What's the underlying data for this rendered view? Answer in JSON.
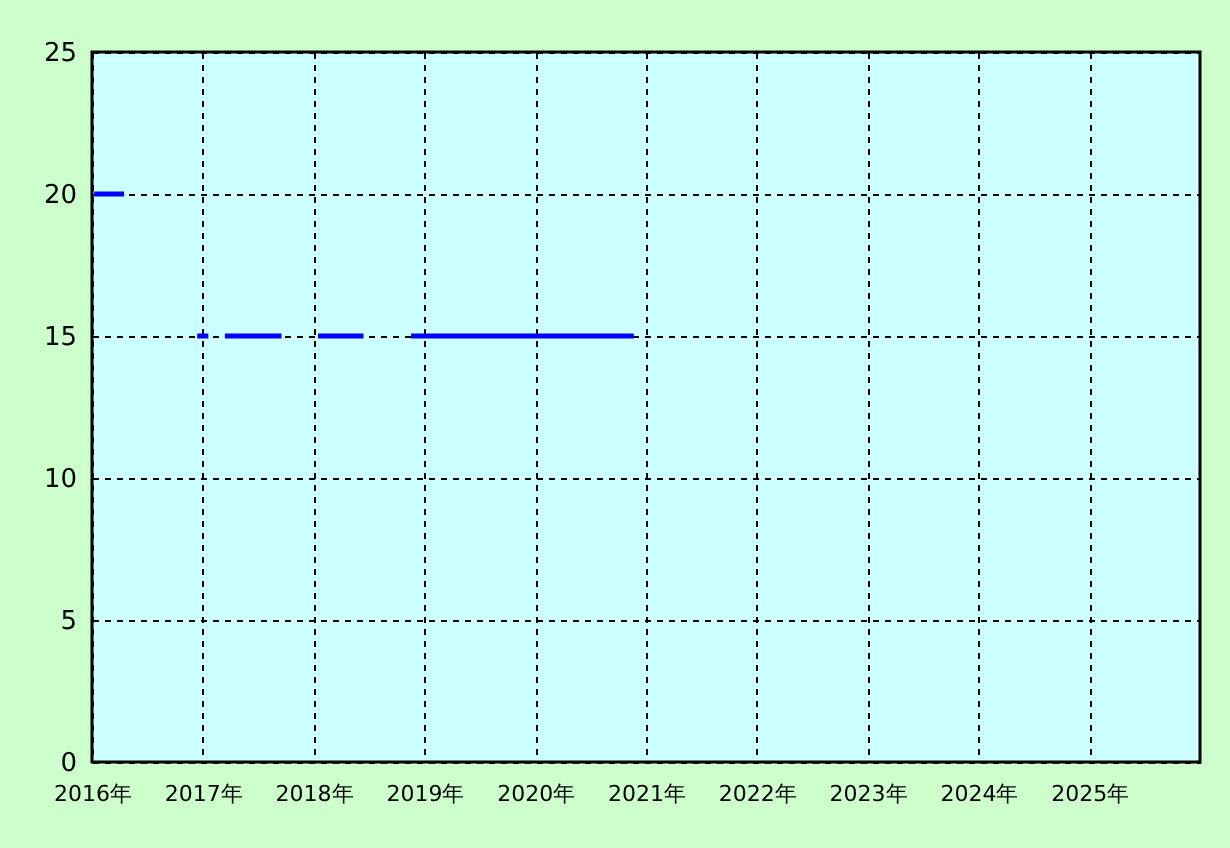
{
  "chart_data": {
    "type": "line",
    "x": [
      2016.02,
      2016.29,
      2016.6,
      2016.95,
      2017.05,
      2017.12,
      2017.2,
      2017.71,
      2017.9,
      2018.04,
      2018.45,
      2018.7,
      2018.88,
      2020.89
    ],
    "series": [
      {
        "color": "#0000ff",
        "values": [
          20,
          20,
          null,
          15,
          15,
          null,
          15,
          15,
          null,
          15,
          15,
          null,
          15,
          15
        ]
      }
    ],
    "xlim": [
      2016,
      2026
    ],
    "xticks": [
      {
        "value": 2016,
        "label": "2016年"
      },
      {
        "value": 2017,
        "label": "2017年"
      },
      {
        "value": 2018,
        "label": "2018年"
      },
      {
        "value": 2019,
        "label": "2019年"
      },
      {
        "value": 2020,
        "label": "2020年"
      },
      {
        "value": 2021,
        "label": "2021年"
      },
      {
        "value": 2022,
        "label": "2022年"
      },
      {
        "value": 2023,
        "label": "2023年"
      },
      {
        "value": 2024,
        "label": "2024年"
      },
      {
        "value": 2025,
        "label": "2025年"
      }
    ],
    "ylim": [
      0,
      25
    ],
    "yticks": [
      0,
      5,
      10,
      15,
      20,
      25
    ],
    "grid": true,
    "marker": "none",
    "line_style": "solid"
  }
}
